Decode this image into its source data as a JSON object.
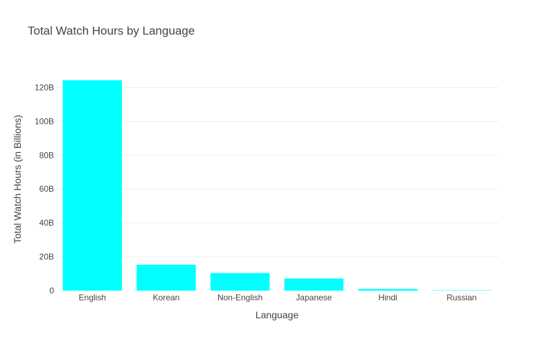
{
  "chart_data": {
    "type": "bar",
    "title": "Total Watch Hours by Language",
    "xlabel": "Language",
    "ylabel": "Total Watch Hours (in Billions)",
    "categories": [
      "English",
      "Korean",
      "Non-English",
      "Japanese",
      "Hindi",
      "Russian"
    ],
    "values": [
      124.3,
      15.3,
      10.4,
      7.2,
      1.0,
      0.2
    ],
    "ylim": [
      0,
      130.8
    ],
    "yticks": [
      0,
      20,
      40,
      60,
      80,
      100,
      120
    ],
    "ytick_labels": [
      "0",
      "20B",
      "40B",
      "60B",
      "80B",
      "100B",
      "120B"
    ],
    "grid": true,
    "legend": "none",
    "bar_color": "#00FFFF"
  }
}
